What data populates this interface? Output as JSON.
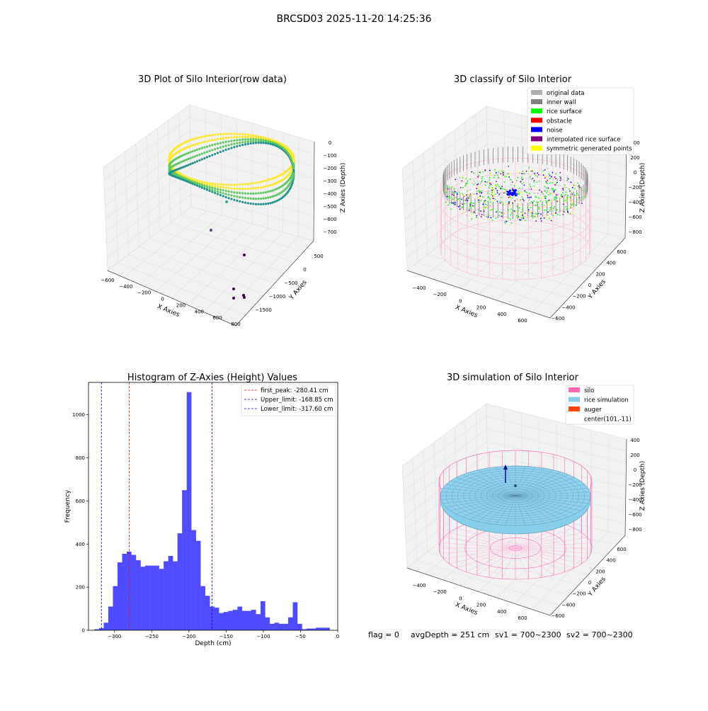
{
  "figure": {
    "title": "BRCSD03 2025-11-20 14:25:36",
    "footer": {
      "flag": "flag = 0",
      "avgdepth": "avgDepth = 251 cm",
      "sv1": "sv1 = 700~2300",
      "sv2": "sv2 = 700~2300"
    }
  },
  "chart_data": [
    {
      "type": "scatter",
      "title": "3D Plot of Silo Interior(row data)",
      "xlabel": "X Axies",
      "ylabel": "Y Axies",
      "zlabel": "Z Axies (Depth)",
      "xticks": [
        "−600",
        "−400",
        "−200",
        "0",
        "200",
        "400",
        "600",
        "800"
      ],
      "yticks": [
        "500",
        "0",
        "−500",
        "−1000",
        "−1500"
      ],
      "zticks": [
        "0",
        "−100",
        "−200",
        "−300",
        "−400",
        "−500",
        "−600",
        "−700"
      ],
      "colormap": [
        "#440154",
        "#3b528b",
        "#21918c",
        "#5ec962",
        "#fde725"
      ],
      "ring": {
        "center_x": 200,
        "center_y": -100,
        "radius": 450,
        "depth_top": -20,
        "depth_bottom": -300
      },
      "outliers": [
        {
          "x": 300,
          "y": -400,
          "z": -430
        },
        {
          "x": 100,
          "y": -650,
          "z": -650
        },
        {
          "x": 400,
          "y": -800,
          "z": -700
        },
        {
          "x": 650,
          "y": -1250,
          "z": -700
        },
        {
          "x": 700,
          "y": -1300,
          "z": -700
        },
        {
          "x": 750,
          "y": -1350,
          "z": -700
        },
        {
          "x": 800,
          "y": -1400,
          "z": -700
        }
      ]
    },
    {
      "type": "scatter",
      "title": "3D classify of Silo Interior",
      "xlabel": "X Axies",
      "ylabel": "Y Axies",
      "zlabel": "Z Axies (Depth)",
      "xticks": [
        "−400",
        "−200",
        "0",
        "200",
        "400",
        "600"
      ],
      "yticks": [
        "600",
        "400",
        "200",
        "0",
        "−200",
        "−400",
        "−600"
      ],
      "zticks": [
        "400",
        "200",
        "0",
        "−200",
        "−400",
        "−600",
        "−800"
      ],
      "legend_position": "top-right",
      "legend": [
        {
          "label": "original data",
          "color": "#b0b0b0"
        },
        {
          "label": "inner wall",
          "color": "#808080"
        },
        {
          "label": "rice surface",
          "color": "#00ff00"
        },
        {
          "label": "obstacle",
          "color": "#ff0000"
        },
        {
          "label": "noise",
          "color": "#0000ff"
        },
        {
          "label": "interpolated rice surface",
          "color": "#800080"
        },
        {
          "label": "symmetric generated points",
          "color": "#ffff00"
        }
      ],
      "silo": {
        "radius": 500,
        "top": 100,
        "bottom": -850
      }
    },
    {
      "type": "bar",
      "title": "Histogram of Z-Axies (Height) Values",
      "xlabel": "Depth (cm)",
      "ylabel": "Frequency",
      "xlim": [
        -335,
        0
      ],
      "ylim": [
        0,
        1150
      ],
      "xticks": [
        -300,
        -250,
        -200,
        -150,
        -100,
        -50,
        0
      ],
      "yticks": [
        0,
        200,
        400,
        600,
        800,
        1000
      ],
      "bar_color": "#4d4dff",
      "bin_start": -327,
      "bin_width": 6.2,
      "values": [
        5,
        10,
        35,
        110,
        205,
        315,
        355,
        365,
        350,
        325,
        295,
        300,
        300,
        300,
        285,
        320,
        345,
        320,
        450,
        650,
        1105,
        465,
        415,
        205,
        160,
        110,
        105,
        80,
        85,
        90,
        95,
        110,
        90,
        90,
        95,
        75,
        135,
        60,
        30,
        35,
        30,
        30,
        60,
        130,
        30,
        5,
        8,
        8,
        12,
        12,
        12
      ],
      "vlines": [
        {
          "label": "first_peak: -280.41 cm",
          "x": -280.41,
          "color": "#ff0000"
        },
        {
          "label": "Upper_limit: -168.85 cm",
          "x": -168.85,
          "color": "#0000ff"
        },
        {
          "label": "Lower_limit: -317.60 cm",
          "x": -317.6,
          "color": "#0000ff"
        }
      ],
      "legend_position": "top-right"
    },
    {
      "type": "surface",
      "title": "3D simulation of Silo Interior",
      "xlabel": "X Axies",
      "ylabel": "Y Axies",
      "zlabel": "Z Axies (Depth)",
      "xticks": [
        "−400",
        "−200",
        "0",
        "200",
        "400",
        "600"
      ],
      "yticks": [
        "600",
        "400",
        "200",
        "0",
        "−200",
        "−400",
        "−600"
      ],
      "zticks": [
        "400",
        "200",
        "0",
        "−200",
        "−400",
        "−600",
        "−800"
      ],
      "legend_position": "top-right",
      "legend": [
        {
          "label": "silo",
          "color": "#ff69b4"
        },
        {
          "label": "rice simulation",
          "color": "#87ceeb"
        },
        {
          "label": "auger",
          "color": "#ff4500"
        },
        {
          "label": "center(101,-11)",
          "color": ""
        }
      ],
      "silo": {
        "radius": 500,
        "top": 100,
        "bottom": -850
      },
      "rice_level": -251
    }
  ]
}
